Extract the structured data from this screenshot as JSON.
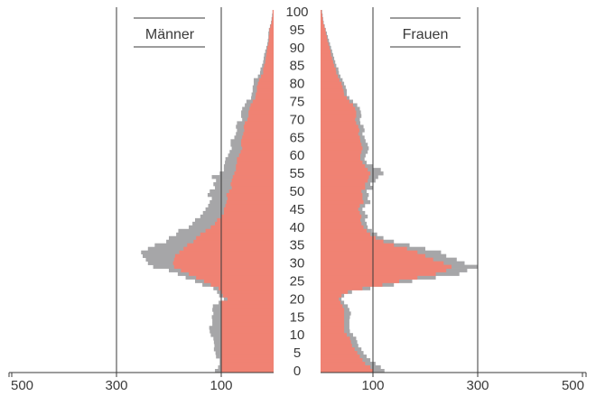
{
  "chart_data": {
    "type": "bar",
    "subtype": "population-pyramid",
    "title": "",
    "xlabel": "",
    "ylabel": "",
    "ages": [
      0,
      1,
      2,
      3,
      4,
      5,
      6,
      7,
      8,
      9,
      10,
      11,
      12,
      13,
      14,
      15,
      16,
      17,
      18,
      19,
      20,
      21,
      22,
      23,
      24,
      25,
      26,
      27,
      28,
      29,
      30,
      31,
      32,
      33,
      34,
      35,
      36,
      37,
      38,
      39,
      40,
      41,
      42,
      43,
      44,
      45,
      46,
      47,
      48,
      49,
      50,
      51,
      52,
      53,
      54,
      55,
      56,
      57,
      58,
      59,
      60,
      61,
      62,
      63,
      64,
      65,
      66,
      67,
      68,
      69,
      70,
      71,
      72,
      73,
      74,
      75,
      76,
      77,
      78,
      79,
      80,
      81,
      82,
      83,
      84,
      85,
      86,
      87,
      88,
      89,
      90,
      91,
      92,
      93,
      94,
      95,
      96,
      97,
      98,
      99,
      100
    ],
    "y_ticks": [
      0,
      5,
      10,
      15,
      20,
      25,
      30,
      35,
      40,
      45,
      50,
      55,
      60,
      65,
      70,
      75,
      80,
      85,
      90,
      95,
      100
    ],
    "x_ticks": [
      500,
      300,
      100
    ],
    "x_tick_labels": [
      "500",
      "300",
      "100"
    ],
    "xlim": [
      0,
      500
    ],
    "grid": "vertical lines at 100 and 300",
    "series": [
      {
        "side": "left",
        "panel_label": "Männer",
        "outer_values": [
          112,
          106,
          103,
          103,
          110,
          111,
          114,
          113,
          114,
          115,
          120,
          122,
          123,
          117,
          117,
          118,
          115,
          117,
          116,
          105,
          95,
          104,
          108,
          115,
          136,
          150,
          168,
          183,
          200,
          230,
          240,
          244,
          250,
          253,
          240,
          227,
          205,
          200,
          186,
          182,
          162,
          155,
          150,
          140,
          135,
          130,
          125,
          122,
          118,
          126,
          122,
          112,
          115,
          110,
          118,
          103,
          95,
          95,
          93,
          92,
          87,
          84,
          80,
          82,
          82,
          75,
          72,
          70,
          72,
          70,
          60,
          62,
          62,
          60,
          55,
          52,
          43,
          42,
          40,
          40,
          38,
          38,
          30,
          26,
          25,
          22,
          20,
          19,
          18,
          16,
          14,
          12,
          11,
          10,
          10,
          9,
          7,
          5,
          4,
          3,
          2
        ],
        "inner_values": [
          100,
          100,
          100,
          100,
          100,
          100,
          100,
          100,
          100,
          100,
          100,
          100,
          100,
          100,
          100,
          100,
          100,
          100,
          100,
          100,
          88,
          97,
          100,
          105,
          120,
          133,
          148,
          162,
          177,
          190,
          192,
          190,
          188,
          180,
          172,
          165,
          153,
          148,
          140,
          130,
          120,
          112,
          108,
          100,
          95,
          95,
          92,
          90,
          88,
          90,
          85,
          80,
          82,
          80,
          78,
          75,
          72,
          72,
          70,
          70,
          66,
          63,
          60,
          62,
          62,
          60,
          58,
          56,
          57,
          55,
          50,
          48,
          48,
          46,
          44,
          40,
          35,
          34,
          32,
          32,
          30,
          28,
          24,
          20,
          20,
          18,
          16,
          15,
          14,
          13,
          12,
          10,
          9,
          9,
          8,
          8,
          6,
          4,
          3,
          2,
          2
        ],
        "outer_color": "#a6a6a8",
        "inner_color": "#f08273"
      },
      {
        "side": "right",
        "panel_label": "Frauen",
        "outer_values": [
          122,
          115,
          105,
          95,
          88,
          82,
          78,
          72,
          70,
          68,
          62,
          56,
          55,
          55,
          55,
          56,
          58,
          55,
          52,
          45,
          40,
          45,
          60,
          95,
          140,
          175,
          220,
          265,
          280,
          300,
          275,
          260,
          240,
          230,
          200,
          170,
          140,
          120,
          108,
          98,
          90,
          88,
          85,
          90,
          85,
          80,
          85,
          95,
          90,
          92,
          88,
          100,
          95,
          105,
          110,
          120,
          115,
          100,
          88,
          84,
          86,
          90,
          92,
          90,
          86,
          84,
          80,
          84,
          82,
          76,
          75,
          78,
          77,
          75,
          70,
          62,
          55,
          50,
          50,
          48,
          45,
          42,
          38,
          35,
          34,
          30,
          28,
          26,
          24,
          22,
          20,
          18,
          16,
          14,
          12,
          10,
          8,
          6,
          5,
          4,
          3
        ],
        "inner_values": [
          100,
          95,
          85,
          80,
          75,
          70,
          65,
          60,
          58,
          56,
          50,
          45,
          45,
          45,
          45,
          45,
          45,
          45,
          42,
          38,
          35,
          40,
          52,
          80,
          118,
          150,
          185,
          220,
          240,
          250,
          235,
          215,
          200,
          185,
          165,
          140,
          120,
          105,
          95,
          88,
          82,
          78,
          76,
          78,
          75,
          72,
          75,
          82,
          80,
          80,
          78,
          85,
          85,
          90,
          92,
          95,
          90,
          85,
          80,
          76,
          76,
          78,
          80,
          78,
          76,
          75,
          72,
          74,
          72,
          68,
          66,
          68,
          68,
          66,
          62,
          55,
          50,
          45,
          44,
          42,
          40,
          36,
          33,
          30,
          29,
          26,
          24,
          22,
          20,
          19,
          17,
          15,
          13,
          12,
          10,
          9,
          7,
          5,
          4,
          3,
          2
        ],
        "outer_color": "#a6a6a8",
        "inner_color": "#f08273"
      }
    ]
  }
}
